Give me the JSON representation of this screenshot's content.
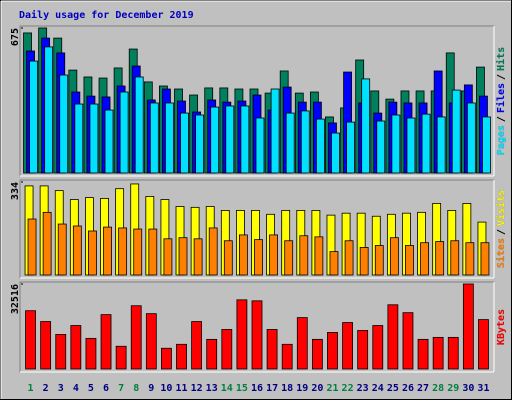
{
  "chart_data": [
    {
      "type": "bar",
      "title": "Daily usage for December 2019",
      "title_color": "#0000c0",
      "ylim": [
        0,
        675
      ],
      "yticks": [
        675
      ],
      "legend_separator": "/",
      "series": [
        {
          "name": "Hits",
          "color": "#00805c",
          "values": [
            652,
            675,
            628,
            479,
            447,
            442,
            489,
            577,
            424,
            405,
            391,
            363,
            396,
            396,
            391,
            391,
            372,
            475,
            372,
            377,
            261,
            303,
            526,
            382,
            344,
            382,
            382,
            382,
            559,
            382,
            493
          ]
        },
        {
          "name": "Files",
          "color": "#0000ff",
          "values": [
            568,
            628,
            559,
            377,
            358,
            354,
            405,
            498,
            340,
            391,
            335,
            284,
            340,
            330,
            335,
            363,
            293,
            400,
            330,
            330,
            233,
            470,
            326,
            279,
            330,
            326,
            326,
            475,
            326,
            410,
            358
          ]
        },
        {
          "name": "Pages",
          "color": "#00e0ff",
          "values": [
            521,
            587,
            456,
            321,
            321,
            293,
            377,
            447,
            326,
            326,
            279,
            270,
            307,
            312,
            312,
            256,
            391,
            279,
            289,
            251,
            186,
            237,
            438,
            242,
            270,
            256,
            274,
            261,
            386,
            326,
            261
          ]
        }
      ]
    },
    {
      "type": "bar",
      "ylim": [
        0,
        334
      ],
      "yticks": [
        334
      ],
      "legend_separator": "/",
      "series": [
        {
          "name": "Visits",
          "color": "#ffff00",
          "values": [
            320,
            320,
            303,
            271,
            278,
            275,
            310,
            327,
            282,
            271,
            246,
            243,
            246,
            232,
            232,
            232,
            218,
            232,
            232,
            232,
            215,
            222,
            222,
            211,
            218,
            222,
            225,
            257,
            232,
            257,
            190
          ]
        },
        {
          "name": "Sites",
          "color": "#ff8000",
          "values": [
            201,
            225,
            183,
            176,
            158,
            172,
            169,
            165,
            165,
            130,
            134,
            130,
            169,
            123,
            144,
            127,
            144,
            123,
            141,
            137,
            84,
            123,
            99,
            106,
            134,
            106,
            116,
            120,
            123,
            116,
            116
          ]
        }
      ]
    },
    {
      "type": "bar",
      "ylim": [
        0,
        32516
      ],
      "yticks": [
        32516
      ],
      "series": [
        {
          "name": "KBytes",
          "color": "#ff0000",
          "values": [
            22300,
            18150,
            13230,
            16630,
            11720,
            20800,
            8700,
            24200,
            21170,
            7940,
            9450,
            18150,
            11340,
            15120,
            26460,
            26080,
            15120,
            9450,
            19660,
            11340,
            13990,
            17770,
            14740,
            16630,
            24570,
            21550,
            11340,
            12100,
            12100,
            32516,
            18900
          ]
        }
      ],
      "categories": [
        "1",
        "2",
        "3",
        "4",
        "5",
        "6",
        "7",
        "8",
        "9",
        "10",
        "11",
        "12",
        "13",
        "14",
        "15",
        "16",
        "17",
        "18",
        "19",
        "20",
        "21",
        "22",
        "23",
        "24",
        "25",
        "26",
        "27",
        "28",
        "29",
        "30",
        "31"
      ],
      "category_colors": [
        "#008040",
        "#000080",
        "#000080",
        "#000080",
        "#000080",
        "#000080",
        "#008040",
        "#008040",
        "#000080",
        "#000080",
        "#000080",
        "#000080",
        "#000080",
        "#008040",
        "#008040",
        "#000080",
        "#000080",
        "#000080",
        "#000080",
        "#000080",
        "#008040",
        "#008040",
        "#000080",
        "#000080",
        "#000080",
        "#000080",
        "#000080",
        "#008040",
        "#008040",
        "#000080",
        "#000080"
      ]
    }
  ]
}
